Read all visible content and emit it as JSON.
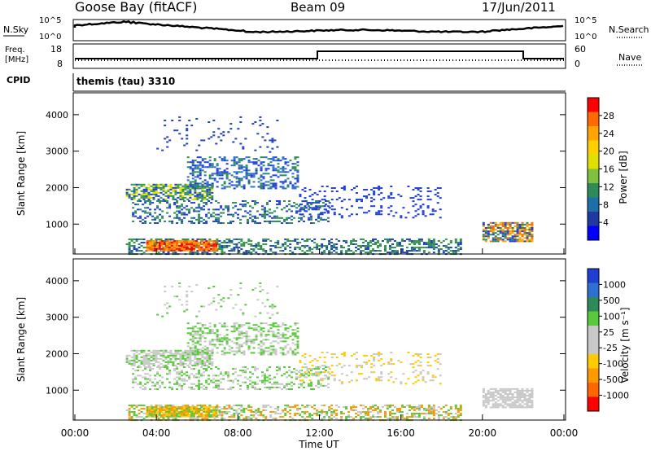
{
  "header": {
    "site": "Goose Bay (fitACF)",
    "beam": "Beam 09",
    "date": "17/Jun/2011"
  },
  "params": {
    "nsky_label": "N.Sky",
    "nsearch_label": "N.Search",
    "freq_label_1": "Freq.",
    "freq_label_2": "[MHz]",
    "nave_label": "Nave",
    "cpid_label": "CPID",
    "noise_ticks_left": [
      "10^5",
      "10^0"
    ],
    "noise_ticks_right": [
      "10^5",
      "10^0"
    ],
    "freq_ticks": [
      "18",
      "8"
    ],
    "nave_ticks": [
      "60",
      "0"
    ],
    "cpid_text": "themis (tau) 3310"
  },
  "colors": {
    "scatter_blue": "#1f3fd0",
    "scatter_green": "#3a9a4a",
    "ground_grey": "#c8c8c8"
  },
  "chart_data": [
    {
      "type": "heatmap",
      "name": "power",
      "ylabel": "Slant Range [km]",
      "yticks": [
        "4000",
        "3000",
        "2000",
        "1000"
      ],
      "ylim": [
        180,
        4600
      ],
      "xlim": [
        0,
        24
      ],
      "colorbar": {
        "label": "Power [dB]",
        "ticks": [
          "28",
          "24",
          "20",
          "16",
          "12",
          "8",
          "4"
        ],
        "colors": [
          "#ff0000",
          "#ff6a00",
          "#ffa500",
          "#ffd000",
          "#e0e000",
          "#80c040",
          "#2e8b57",
          "#1e6fa8",
          "#1e3aa0",
          "#0000ff"
        ]
      }
    },
    {
      "type": "heatmap",
      "name": "velocity",
      "ylabel": "Slant Range [km]",
      "yticks": [
        "4000",
        "3000",
        "2000",
        "1000"
      ],
      "ylim": [
        180,
        4600
      ],
      "xlim": [
        0,
        24
      ],
      "xlabel": "Time UT",
      "xticks": [
        "00:00",
        "04:00",
        "08:00",
        "12:00",
        "16:00",
        "20:00",
        "00:00"
      ],
      "colorbar": {
        "label": "Velocity [m s⁻¹]",
        "ticks": [
          "1000",
          "500",
          "100",
          "25",
          "-25",
          "-100",
          "-500",
          "-1000"
        ],
        "colors": [
          "#1f3fd0",
          "#2e6fd0",
          "#2e8b57",
          "#5ac83c",
          "#c8c8c8",
          "#c8c8c8",
          "#ffcc00",
          "#ff9900",
          "#ff6600",
          "#ff0000"
        ]
      }
    }
  ]
}
